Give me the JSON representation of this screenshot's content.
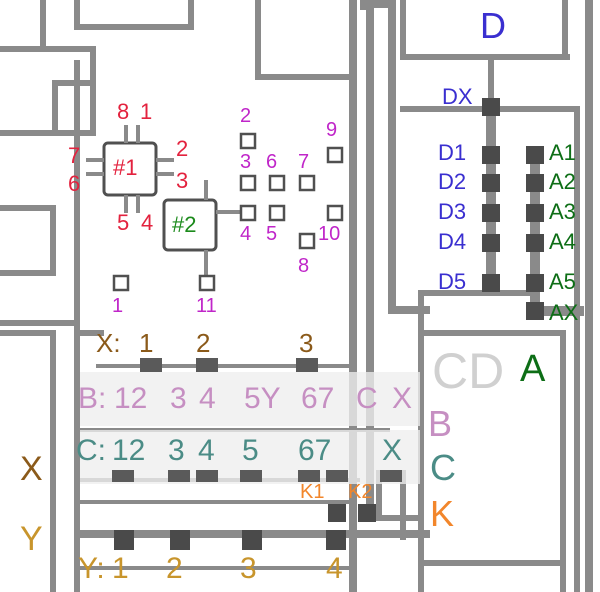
{
  "chip1": {
    "label": "#1",
    "pins": {
      "p1": "1",
      "p2": "2",
      "p3": "3",
      "p4": "4",
      "p5": "5",
      "p6": "6",
      "p7": "7",
      "p8": "8"
    }
  },
  "chip2": {
    "label": "#2"
  },
  "pads": {
    "p1": "1",
    "p2": "2",
    "p3": "3",
    "p4": "4",
    "p5": "5",
    "p6": "6",
    "p7": "7",
    "p8": "8",
    "p9": "9",
    "p10": "10",
    "p11": "11"
  },
  "connector_d": {
    "title": "D",
    "dx": "DX",
    "pins": [
      "D1",
      "D2",
      "D3",
      "D4",
      "D5"
    ]
  },
  "connector_a": {
    "title": "A",
    "ax": "AX",
    "pins": [
      "A1",
      "A2",
      "A3",
      "A4",
      "A5"
    ]
  },
  "cd_label": "CD",
  "row_x": {
    "prefix": "X:",
    "nums": [
      "1",
      "2",
      "3"
    ],
    "side": "X"
  },
  "row_b": {
    "prefix": "B:",
    "nums": [
      "12",
      "3",
      "4",
      "5Y",
      "67",
      "C",
      "X"
    ],
    "side": "B"
  },
  "row_c": {
    "prefix": "C:",
    "nums": [
      "12",
      "3",
      "4",
      "5",
      "67",
      "X"
    ],
    "side": "C"
  },
  "row_k": {
    "k1": "K1",
    "k2": "K2",
    "side": "K"
  },
  "row_y": {
    "prefix": "Y:",
    "nums": [
      "1",
      "2",
      "3",
      "4"
    ],
    "side": "Y"
  },
  "colors": {
    "red": "#e3223e",
    "magenta": "#c026c9",
    "green": "#1b8a1b",
    "blue": "#3a2fd0",
    "dark_green": "#0d6e16",
    "brown": "#8b5a1a",
    "pink": "#c68fc2",
    "teal": "#4b8c86",
    "orange": "#f2862b",
    "gold": "#c8952c",
    "trace": "#8a8a8a",
    "pad": "#4a4a4a"
  }
}
